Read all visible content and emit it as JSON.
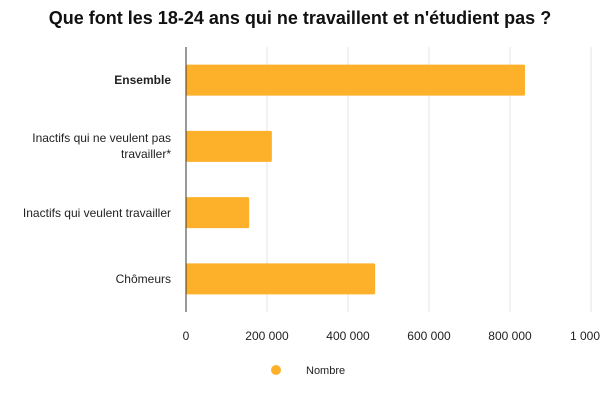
{
  "chart_data": {
    "type": "bar",
    "orientation": "horizontal",
    "title": "Que font les 18-24 ans qui ne travaillent et n'étudient pas ?",
    "categories": [
      "Ensemble",
      "Inactifs qui ne veulent pas travailler*",
      "Inactifs qui veulent travailler",
      "Chômeurs"
    ],
    "series": [
      {
        "name": "Nombre",
        "color": "#fdb12a",
        "values": [
          837000,
          212000,
          156000,
          467000
        ]
      }
    ],
    "xlim": [
      0,
      1000000
    ],
    "xticks": [
      0,
      {
        "value": 200000,
        "label": "200 000"
      },
      {
        "value": 400000,
        "label": "400 000"
      },
      {
        "value": 600000,
        "label": "600 000"
      },
      {
        "value": 800000,
        "label": "800 000"
      },
      {
        "value": 1000000,
        "label": "1 000…"
      }
    ],
    "grid": true,
    "legend": "bottom"
  }
}
